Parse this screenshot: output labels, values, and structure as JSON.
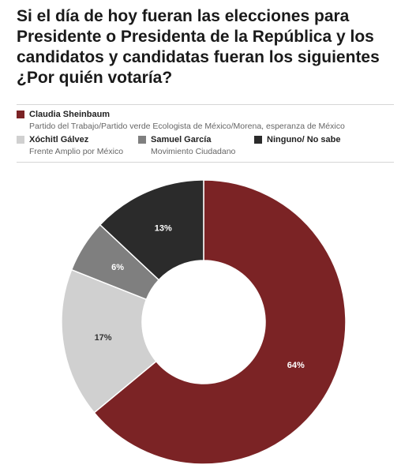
{
  "title": "Si el día de hoy fueran las elecciones para Presidente o Presidenta de la República y los candidatos y candidatas fueran los siguientes ¿Por quién votaría?",
  "legend": [
    {
      "name": "Claudia Sheinbaum",
      "sub": "Partido del Trabajo/Partido verde Ecologista de México/Morena, esperanza de México",
      "color": "#7b2325"
    },
    {
      "name": "Xóchitl Gálvez",
      "sub": "Frente Amplio por México",
      "color": "#d0d0d0"
    },
    {
      "name": "Samuel García",
      "sub": "Movimiento Ciudadano",
      "color": "#7f7f7f"
    },
    {
      "name": "Ninguno/ No sabe",
      "sub": "",
      "color": "#2b2b2b"
    }
  ],
  "chart_data": {
    "type": "pie",
    "donut": true,
    "categories": [
      "Claudia Sheinbaum",
      "Xóchitl Gálvez",
      "Samuel García",
      "Ninguno/ No sabe"
    ],
    "values": [
      64,
      17,
      6,
      13
    ],
    "labels": [
      "64%",
      "17%",
      "6%",
      "13%"
    ],
    "colors": [
      "#7b2325",
      "#d0d0d0",
      "#7f7f7f",
      "#2b2b2b"
    ],
    "label_colors": [
      "#ffffff",
      "#333333",
      "#ffffff",
      "#ffffff"
    ]
  }
}
